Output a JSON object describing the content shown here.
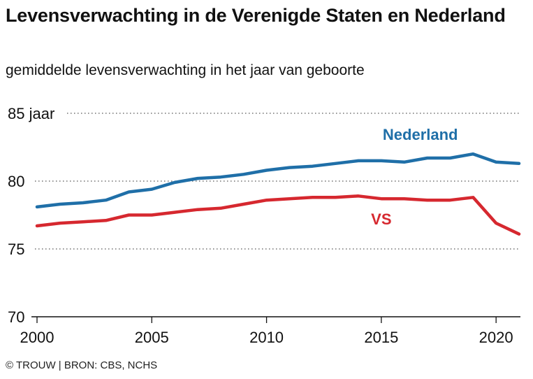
{
  "header": {
    "title": "Levensverwachting in de Verenigde Staten en Nederland",
    "subtitle": "gemiddelde levensverwachting in het jaar van geboorte"
  },
  "footer": {
    "source": "© TROUW | BRON: CBS, NCHS"
  },
  "chart_data": {
    "type": "line",
    "title": "Levensverwachting in de Verenigde Staten en Nederland",
    "subtitle": "gemiddelde levensverwachting in het jaar van geboorte",
    "xlabel": "",
    "ylabel": "",
    "x": [
      2000,
      2001,
      2002,
      2003,
      2004,
      2005,
      2006,
      2007,
      2008,
      2009,
      2010,
      2011,
      2012,
      2013,
      2014,
      2015,
      2016,
      2017,
      2018,
      2019,
      2020,
      2021
    ],
    "xlim": [
      2000,
      2021
    ],
    "ylim": [
      70,
      85
    ],
    "x_ticks": [
      2000,
      2005,
      2010,
      2015,
      2020
    ],
    "y_ticks": [
      {
        "value": 85,
        "label": "85 jaar"
      },
      {
        "value": 80,
        "label": "80"
      },
      {
        "value": 75,
        "label": "75"
      },
      {
        "value": 70,
        "label": "70"
      }
    ],
    "grid": "horizontal dotted",
    "legend": "inline labels",
    "series": [
      {
        "name": "Nederland",
        "color": "#1f6fa8",
        "values": [
          78.1,
          78.3,
          78.4,
          78.6,
          79.2,
          79.4,
          79.9,
          80.2,
          80.3,
          80.5,
          80.8,
          81.0,
          81.1,
          81.3,
          81.5,
          81.5,
          81.4,
          81.7,
          81.7,
          82.0,
          81.4,
          81.3
        ]
      },
      {
        "name": "VS",
        "color": "#d6282f",
        "values": [
          76.7,
          76.9,
          77.0,
          77.1,
          77.5,
          77.5,
          77.7,
          77.9,
          78.0,
          78.3,
          78.6,
          78.7,
          78.8,
          78.8,
          78.9,
          78.7,
          78.7,
          78.6,
          78.6,
          78.8,
          76.9,
          76.1
        ]
      }
    ]
  }
}
